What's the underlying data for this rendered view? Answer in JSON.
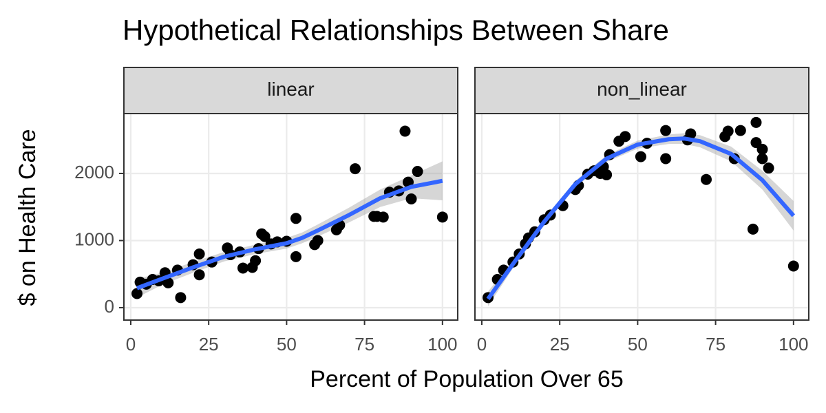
{
  "chart_data": {
    "type": "scatter",
    "title": "Hypothetical Relationships Between Share",
    "xlabel": "Percent of Population Over 65",
    "ylabel": "$ on Health Care",
    "xlim": [
      -2.2,
      104.9
    ],
    "ylim": [
      -185,
      2892
    ],
    "xticks": [
      0,
      25,
      50,
      75,
      100
    ],
    "yticks": [
      0,
      1000,
      2000
    ],
    "grid": true,
    "point_color": "#000000",
    "smooth_color": "#3366ff",
    "band_color": "#999999",
    "facets": [
      {
        "label": "linear",
        "x": [
          2,
          3,
          5,
          7,
          9,
          11,
          12,
          15,
          16,
          20,
          22,
          22,
          26,
          31,
          32,
          35,
          36,
          39,
          40,
          41,
          42,
          43,
          45,
          47,
          50,
          53,
          53,
          59,
          60,
          66,
          67,
          72,
          78,
          79,
          81,
          83,
          86,
          88,
          89,
          90,
          92,
          100
        ],
        "y": [
          210,
          380,
          350,
          420,
          400,
          520,
          370,
          560,
          150,
          640,
          800,
          490,
          680,
          890,
          790,
          830,
          590,
          600,
          700,
          880,
          1100,
          1060,
          950,
          980,
          990,
          1330,
          760,
          940,
          1000,
          1160,
          1230,
          2070,
          1360,
          1360,
          1350,
          1720,
          1740,
          2630,
          1870,
          1620,
          2030,
          1350
        ],
        "smooth_x": [
          2,
          10,
          20,
          30,
          40,
          50,
          55,
          60,
          70,
          80,
          90,
          100
        ],
        "smooth_y": [
          290,
          430,
          600,
          760,
          870,
          960,
          1040,
          1150,
          1380,
          1630,
          1800,
          1890
        ],
        "smooth_lower": [
          150,
          340,
          520,
          690,
          800,
          880,
          960,
          1060,
          1270,
          1500,
          1630,
          1600
        ],
        "smooth_upper": [
          430,
          520,
          680,
          830,
          940,
          1040,
          1120,
          1240,
          1490,
          1760,
          1970,
          2180
        ]
      },
      {
        "label": "non_linear",
        "x": [
          2,
          5,
          7,
          10,
          12,
          14,
          15,
          17,
          20,
          22,
          26,
          30,
          31,
          34,
          36,
          38,
          39,
          40,
          41,
          44,
          46,
          51,
          53,
          59,
          59,
          66,
          67,
          72,
          78,
          79,
          81,
          83,
          87,
          88,
          88,
          90,
          90,
          92,
          100
        ],
        "y": [
          150,
          420,
          560,
          680,
          800,
          950,
          1040,
          1130,
          1310,
          1380,
          1520,
          1760,
          1820,
          1990,
          2040,
          2000,
          2100,
          1980,
          2280,
          2480,
          2550,
          2250,
          2450,
          2640,
          2220,
          2500,
          2590,
          1910,
          2550,
          2630,
          2220,
          2640,
          1170,
          2760,
          2460,
          2360,
          2220,
          2080,
          620
        ],
        "smooth_x": [
          2,
          10,
          20,
          30,
          40,
          50,
          60,
          65,
          70,
          80,
          90,
          100
        ],
        "smooth_y": [
          130,
          650,
          1280,
          1840,
          2220,
          2430,
          2510,
          2520,
          2480,
          2290,
          1900,
          1370
        ],
        "smooth_lower": [
          20,
          590,
          1230,
          1790,
          2170,
          2370,
          2440,
          2440,
          2390,
          2180,
          1760,
          1150
        ],
        "smooth_upper": [
          240,
          710,
          1330,
          1890,
          2270,
          2490,
          2580,
          2600,
          2570,
          2400,
          2040,
          1590
        ]
      }
    ]
  }
}
